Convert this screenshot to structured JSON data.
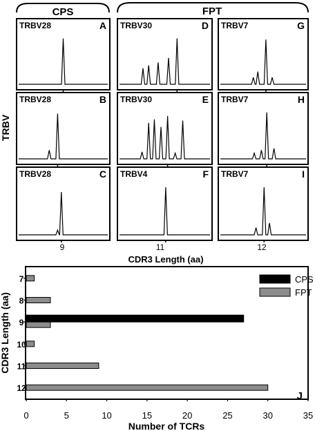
{
  "top": {
    "groups": [
      {
        "label": "CPS"
      },
      {
        "label": "FPT"
      }
    ],
    "y_axis_label": "TRBV",
    "x_axis_label": "CDR3 Length (aa)",
    "column_ticks": [
      "9",
      "11",
      "12"
    ],
    "panels": [
      {
        "gene": "TRBV28",
        "letter": "A",
        "peaks": [
          {
            "pos": 0.5,
            "h": 0.8
          }
        ]
      },
      {
        "gene": "TRBV30",
        "letter": "D",
        "peaks": [
          {
            "pos": 0.27,
            "h": 0.28
          },
          {
            "pos": 0.33,
            "h": 0.33
          },
          {
            "pos": 0.4,
            "h": 0.0
          },
          {
            "pos": 0.43,
            "h": 0.38
          },
          {
            "pos": 0.54,
            "h": 0.46
          },
          {
            "pos": 0.63,
            "h": 0.8
          }
        ]
      },
      {
        "gene": "TRBV7",
        "letter": "G",
        "peaks": [
          {
            "pos": 0.39,
            "h": 0.12
          },
          {
            "pos": 0.44,
            "h": 0.22
          },
          {
            "pos": 0.53,
            "h": 0.78
          },
          {
            "pos": 0.6,
            "h": 0.12
          }
        ]
      },
      {
        "gene": "TRBV28",
        "letter": "B",
        "peaks": [
          {
            "pos": 0.35,
            "h": 0.15
          },
          {
            "pos": 0.44,
            "h": 0.78
          }
        ]
      },
      {
        "gene": "TRBV30",
        "letter": "E",
        "peaks": [
          {
            "pos": 0.26,
            "h": 0.12
          },
          {
            "pos": 0.33,
            "h": 0.62
          },
          {
            "pos": 0.39,
            "h": 0.68
          },
          {
            "pos": 0.46,
            "h": 0.55
          },
          {
            "pos": 0.53,
            "h": 0.74
          },
          {
            "pos": 0.61,
            "h": 0.1
          },
          {
            "pos": 0.69,
            "h": 0.66
          }
        ]
      },
      {
        "gene": "TRBV7",
        "letter": "H",
        "peaks": [
          {
            "pos": 0.4,
            "h": 0.1
          },
          {
            "pos": 0.48,
            "h": 0.15
          },
          {
            "pos": 0.54,
            "h": 0.8
          },
          {
            "pos": 0.62,
            "h": 0.18
          }
        ]
      },
      {
        "gene": "TRBV28",
        "letter": "C",
        "peaks": [
          {
            "pos": 0.44,
            "h": 0.08
          },
          {
            "pos": 0.48,
            "h": 0.72
          }
        ]
      },
      {
        "gene": "TRBV4",
        "letter": "F",
        "peaks": [
          {
            "pos": 0.51,
            "h": 0.8
          }
        ]
      },
      {
        "gene": "TRBV7",
        "letter": "I",
        "peaks": [
          {
            "pos": 0.42,
            "h": 0.12
          },
          {
            "pos": 0.51,
            "h": 0.8
          },
          {
            "pos": 0.57,
            "h": 0.2
          }
        ]
      }
    ]
  },
  "chart_data": {
    "type": "bar",
    "orientation": "horizontal",
    "panel_letter": "J",
    "categories": [
      "7",
      "8",
      "9",
      "10",
      "11",
      "12"
    ],
    "series": [
      {
        "name": "CPS",
        "color": "#000000",
        "values": [
          0,
          0,
          27,
          0,
          0,
          0
        ]
      },
      {
        "name": "FPT",
        "color": "#8c8c8c",
        "values": [
          1,
          3,
          3,
          1,
          9,
          30
        ]
      }
    ],
    "xlabel": "Number of TCRs",
    "ylabel": "CDR3 Length (aa)",
    "xlim": [
      0,
      35
    ],
    "xticks": [
      "0",
      "5",
      "10",
      "15",
      "20",
      "25",
      "30",
      "35"
    ],
    "legend": "top-right",
    "grid": false
  }
}
